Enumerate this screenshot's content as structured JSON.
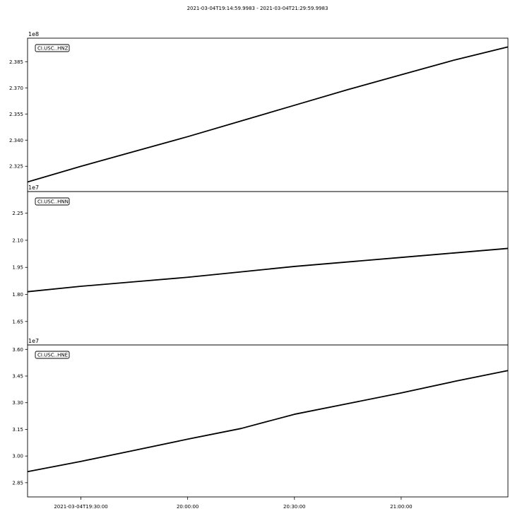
{
  "title": "2021-03-04T19:14:59.9983  -  2021-03-04T21:29:59.9983",
  "chart_data": [
    {
      "type": "line",
      "legend": "CI.USC..HNZ",
      "legend_position": "top-left",
      "offset_label": "1e8",
      "ylim": [
        2.3105,
        2.3985
      ],
      "yticks": [
        2.325,
        2.34,
        2.355,
        2.37,
        2.385
      ],
      "ytick_labels": [
        "2.325",
        "2.340",
        "2.355",
        "2.370",
        "2.385"
      ],
      "x": [
        "19:14:59",
        "19:30:00",
        "19:45:00",
        "20:00:00",
        "20:15:00",
        "20:30:00",
        "20:45:00",
        "21:00:00",
        "21:15:00",
        "21:29:59"
      ],
      "values": [
        2.316,
        2.325,
        2.3335,
        2.342,
        2.351,
        2.36,
        2.369,
        2.3775,
        2.386,
        2.3935
      ]
    },
    {
      "type": "line",
      "legend": "CI.USC..HNN",
      "legend_position": "top-left",
      "offset_label": "1e7",
      "ylim": [
        1.52,
        2.37
      ],
      "yticks": [
        1.65,
        1.8,
        1.95,
        2.1,
        2.25
      ],
      "ytick_labels": [
        "1.65",
        "1.80",
        "1.95",
        "2.10",
        "2.25"
      ],
      "x": [
        "19:14:59",
        "19:30:00",
        "19:45:00",
        "20:00:00",
        "20:15:00",
        "20:30:00",
        "20:45:00",
        "21:00:00",
        "21:15:00",
        "21:29:59"
      ],
      "values": [
        1.815,
        1.845,
        1.87,
        1.895,
        1.925,
        1.955,
        1.98,
        2.005,
        2.03,
        2.055
      ]
    },
    {
      "type": "line",
      "legend": "CI.USC..HNE",
      "legend_position": "top-left",
      "offset_label": "1e7",
      "ylim": [
        2.77,
        3.625
      ],
      "yticks": [
        2.85,
        3.0,
        3.15,
        3.3,
        3.45,
        3.6
      ],
      "ytick_labels": [
        "2.85",
        "3.00",
        "3.15",
        "3.30",
        "3.45",
        "3.60"
      ],
      "x": [
        "19:14:59",
        "19:30:00",
        "19:45:00",
        "20:00:00",
        "20:15:00",
        "20:30:00",
        "20:45:00",
        "21:00:00",
        "21:15:00",
        "21:29:59"
      ],
      "values": [
        2.912,
        2.97,
        3.032,
        3.095,
        3.155,
        3.235,
        3.295,
        3.355,
        3.42,
        3.481
      ]
    }
  ],
  "x_axis": {
    "range_seconds": [
      0,
      8100
    ],
    "ticks_seconds": [
      900,
      2700,
      4500,
      6300
    ],
    "tick_labels": [
      "2021-03-04T19:30:00",
      "20:00:00",
      "20:30:00",
      "21:00:00"
    ]
  },
  "line_color": "#000000"
}
